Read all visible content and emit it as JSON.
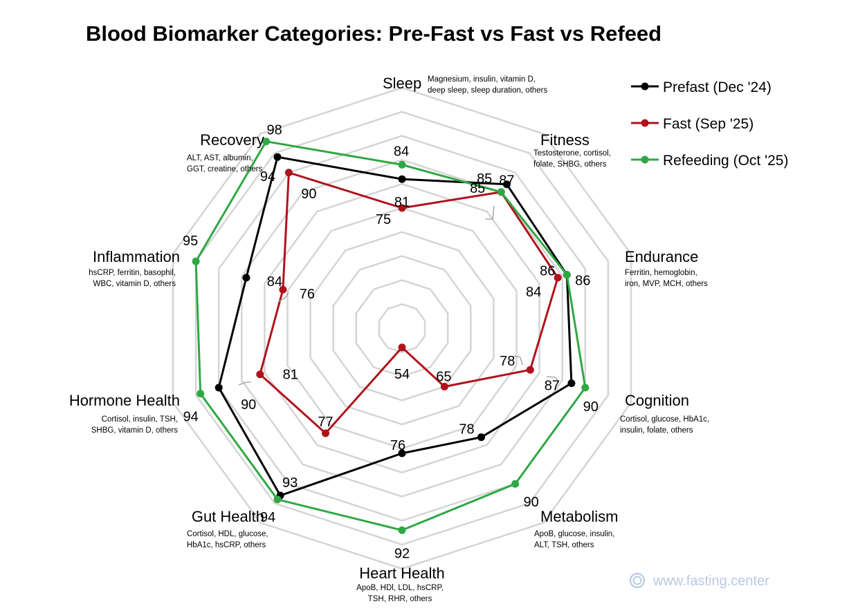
{
  "chart_data": {
    "type": "radar",
    "title": "Blood Biomarker Categories: Pre-Fast vs Fast vs Refeed",
    "r_range": [
      50,
      100
    ],
    "grid_levels": [
      55,
      60,
      65,
      70,
      75,
      80,
      85,
      90,
      95,
      100
    ],
    "grid": true,
    "legend_position": "top-right",
    "categories": [
      {
        "name": "Sleep",
        "desc": [
          "Magnesium, insulin, vitamin D,",
          "deep sleep, sleep duration, others"
        ]
      },
      {
        "name": "Fitness",
        "desc": [
          "Testosterone, cortisol,",
          "folate, SHBG, others"
        ]
      },
      {
        "name": "Endurance",
        "desc": [
          "Ferritin, hemoglobin,",
          "iron, MVP, MCH, others"
        ]
      },
      {
        "name": "Cognition",
        "desc": [
          "Cortisol, glucose, HbA1c,",
          "insulin, folate, others"
        ]
      },
      {
        "name": "Metabolism",
        "desc": [
          "ApoB, glucose, insulin,",
          "ALT, TSH, others"
        ]
      },
      {
        "name": "Heart Health",
        "desc": [
          "ApoB, HDl, LDL, hsCRP,",
          "TSH, RHR, others"
        ]
      },
      {
        "name": "Gut Health",
        "desc": [
          "Cortisol, HDL, glucose,",
          "HbA1c, hsCRP, others"
        ]
      },
      {
        "name": "Hormone Health",
        "desc": [
          "Cortisol, insulin, TSH,",
          "SHBG, vitamin D, others"
        ]
      },
      {
        "name": "Inflammation",
        "desc": [
          "hsCRP, ferritin, basophil,",
          "WBC, vitamin D, others"
        ]
      },
      {
        "name": "Recovery",
        "desc": [
          "ALT, AST, albumin,",
          "GGT, creatine, others"
        ]
      }
    ],
    "series": [
      {
        "name": "Prefast (Dec '24)",
        "color": "#000000",
        "values": [
          81,
          87,
          86,
          87,
          78,
          76,
          93,
          90,
          84,
          94
        ]
      },
      {
        "name": "Fast (Sep '25)",
        "color": "#b0121b",
        "values": [
          75,
          85,
          84,
          78,
          65,
          54,
          77,
          81,
          76,
          90
        ]
      },
      {
        "name": "Refeeding (Oct '25)",
        "color": "#2ea843",
        "values": [
          84,
          85,
          86,
          90,
          90,
          92,
          94,
          94,
          95,
          98
        ]
      }
    ]
  },
  "watermark": "www.fasting.center",
  "watermark_icon": "fasting-center-logo-icon"
}
